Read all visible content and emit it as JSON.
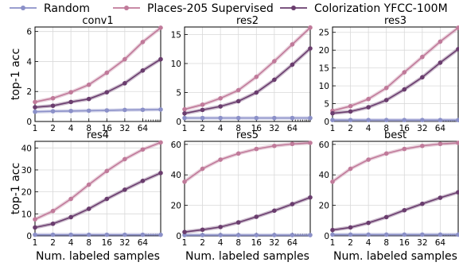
{
  "legend": [
    {
      "name": "Random",
      "color": "#8B90C8"
    },
    {
      "name": "Places-205 Supervised",
      "color": "#C07A9A"
    },
    {
      "name": "Colorization YFCC-100M",
      "color": "#6A3D6E"
    }
  ],
  "colors": {
    "random": "#8B90C8",
    "places": "#C07A9A",
    "colorization": "#6A3D6E",
    "grid": "#d9d9d9"
  },
  "chart_data": [
    {
      "type": "line",
      "title": "conv1",
      "xlabel": "",
      "ylabel": "top-1 acc",
      "xscale": "log2",
      "x": [
        1,
        2,
        4,
        8,
        16,
        32,
        64,
        128
      ],
      "xticklabels": [
        "1",
        "2",
        "4",
        "8",
        "16",
        "32",
        "64"
      ],
      "ylim": [
        0,
        6.3
      ],
      "yticks": [
        0,
        2,
        4,
        6
      ],
      "grid": true,
      "series": [
        {
          "name": "Random",
          "values": [
            0.65,
            0.68,
            0.7,
            0.72,
            0.74,
            0.77,
            0.78,
            0.8
          ]
        },
        {
          "name": "Places-205 Supervised",
          "values": [
            1.3,
            1.55,
            1.95,
            2.45,
            3.25,
            4.15,
            5.3,
            6.25
          ]
        },
        {
          "name": "Colorization YFCC-100M",
          "values": [
            0.95,
            1.05,
            1.3,
            1.5,
            1.95,
            2.55,
            3.4,
            4.15
          ]
        }
      ]
    },
    {
      "type": "line",
      "title": "res2",
      "xlabel": "",
      "ylabel": "",
      "xscale": "log2",
      "x": [
        1,
        2,
        4,
        8,
        16,
        32,
        64,
        128
      ],
      "xticklabels": [
        "1",
        "2",
        "4",
        "8",
        "16",
        "32",
        "64"
      ],
      "ylim": [
        0,
        16.3
      ],
      "yticks": [
        0,
        5,
        10,
        15
      ],
      "grid": true,
      "series": [
        {
          "name": "Random",
          "values": [
            0.6,
            0.6,
            0.6,
            0.6,
            0.6,
            0.6,
            0.6,
            0.6
          ]
        },
        {
          "name": "Places-205 Supervised",
          "values": [
            2.1,
            2.9,
            4.0,
            5.4,
            7.7,
            10.4,
            13.3,
            16.2
          ]
        },
        {
          "name": "Colorization YFCC-100M",
          "values": [
            1.4,
            2.0,
            2.6,
            3.5,
            5.0,
            7.2,
            9.8,
            12.6
          ]
        }
      ]
    },
    {
      "type": "line",
      "title": "res3",
      "xlabel": "",
      "ylabel": "",
      "xscale": "log2",
      "x": [
        1,
        2,
        4,
        8,
        16,
        32,
        64,
        128
      ],
      "xticklabels": [
        "1",
        "2",
        "4",
        "8",
        "16",
        "32",
        "64"
      ],
      "ylim": [
        0,
        26.5
      ],
      "yticks": [
        0,
        5,
        10,
        15,
        20,
        25
      ],
      "grid": true,
      "series": [
        {
          "name": "Random",
          "values": [
            0.4,
            0.4,
            0.4,
            0.4,
            0.4,
            0.4,
            0.4,
            0.4
          ]
        },
        {
          "name": "Places-205 Supervised",
          "values": [
            3.0,
            4.3,
            6.3,
            9.4,
            13.8,
            18.1,
            22.4,
            26.3
          ]
        },
        {
          "name": "Colorization YFCC-100M",
          "values": [
            2.3,
            2.8,
            4.0,
            6.0,
            9.0,
            12.4,
            16.5,
            20.3
          ]
        }
      ]
    },
    {
      "type": "line",
      "title": "res4",
      "xlabel": "Num. labeled samples",
      "ylabel": "top-1 acc",
      "xscale": "log2",
      "x": [
        1,
        2,
        4,
        8,
        16,
        32,
        64,
        128
      ],
      "xticklabels": [
        "1",
        "2",
        "4",
        "8",
        "16",
        "32",
        "64"
      ],
      "ylim": [
        0,
        43
      ],
      "yticks": [
        0,
        10,
        20,
        30,
        40
      ],
      "grid": true,
      "series": [
        {
          "name": "Random",
          "values": [
            0.5,
            0.5,
            0.5,
            0.5,
            0.5,
            0.5,
            0.5,
            0.5
          ]
        },
        {
          "name": "Places-205 Supervised",
          "values": [
            7.5,
            11.3,
            16.8,
            23.3,
            29.5,
            34.9,
            39.3,
            42.5
          ]
        },
        {
          "name": "Colorization YFCC-100M",
          "values": [
            3.8,
            5.5,
            8.5,
            12.3,
            16.8,
            21.0,
            25.0,
            28.6
          ]
        }
      ]
    },
    {
      "type": "line",
      "title": "res5",
      "xlabel": "Num. labeled samples",
      "ylabel": "",
      "xscale": "log2",
      "x": [
        1,
        2,
        4,
        8,
        16,
        32,
        64,
        128
      ],
      "xticklabels": [
        "1",
        "2",
        "4",
        "8",
        "16",
        "32",
        "64"
      ],
      "ylim": [
        0,
        62
      ],
      "yticks": [
        0,
        20,
        40,
        60
      ],
      "grid": true,
      "series": [
        {
          "name": "Random",
          "values": [
            0.5,
            0.5,
            0.5,
            0.5,
            0.5,
            0.5,
            0.5,
            0.5
          ]
        },
        {
          "name": "Places-205 Supervised",
          "values": [
            35.5,
            44.0,
            50.0,
            54.0,
            57.0,
            59.0,
            60.3,
            61.0
          ]
        },
        {
          "name": "Colorization YFCC-100M",
          "values": [
            2.5,
            4.0,
            5.8,
            8.8,
            12.5,
            16.5,
            20.8,
            25.2
          ]
        }
      ]
    },
    {
      "type": "line",
      "title": "best",
      "xlabel": "Num. labeled samples",
      "ylabel": "",
      "xscale": "log2",
      "x": [
        1,
        2,
        4,
        8,
        16,
        32,
        64,
        128
      ],
      "xticklabels": [
        "1",
        "2",
        "4",
        "8",
        "16",
        "32",
        "64"
      ],
      "ylim": [
        0,
        62
      ],
      "yticks": [
        0,
        20,
        40,
        60
      ],
      "grid": true,
      "series": [
        {
          "name": "Random",
          "values": [
            0.8,
            0.8,
            0.8,
            0.8,
            0.8,
            0.8,
            0.8,
            0.8
          ]
        },
        {
          "name": "Places-205 Supervised",
          "values": [
            35.5,
            44.0,
            50.0,
            54.0,
            57.0,
            59.0,
            60.3,
            61.0
          ]
        },
        {
          "name": "Colorization YFCC-100M",
          "values": [
            3.8,
            5.5,
            8.5,
            12.3,
            16.8,
            21.0,
            25.0,
            28.6
          ]
        }
      ]
    }
  ]
}
